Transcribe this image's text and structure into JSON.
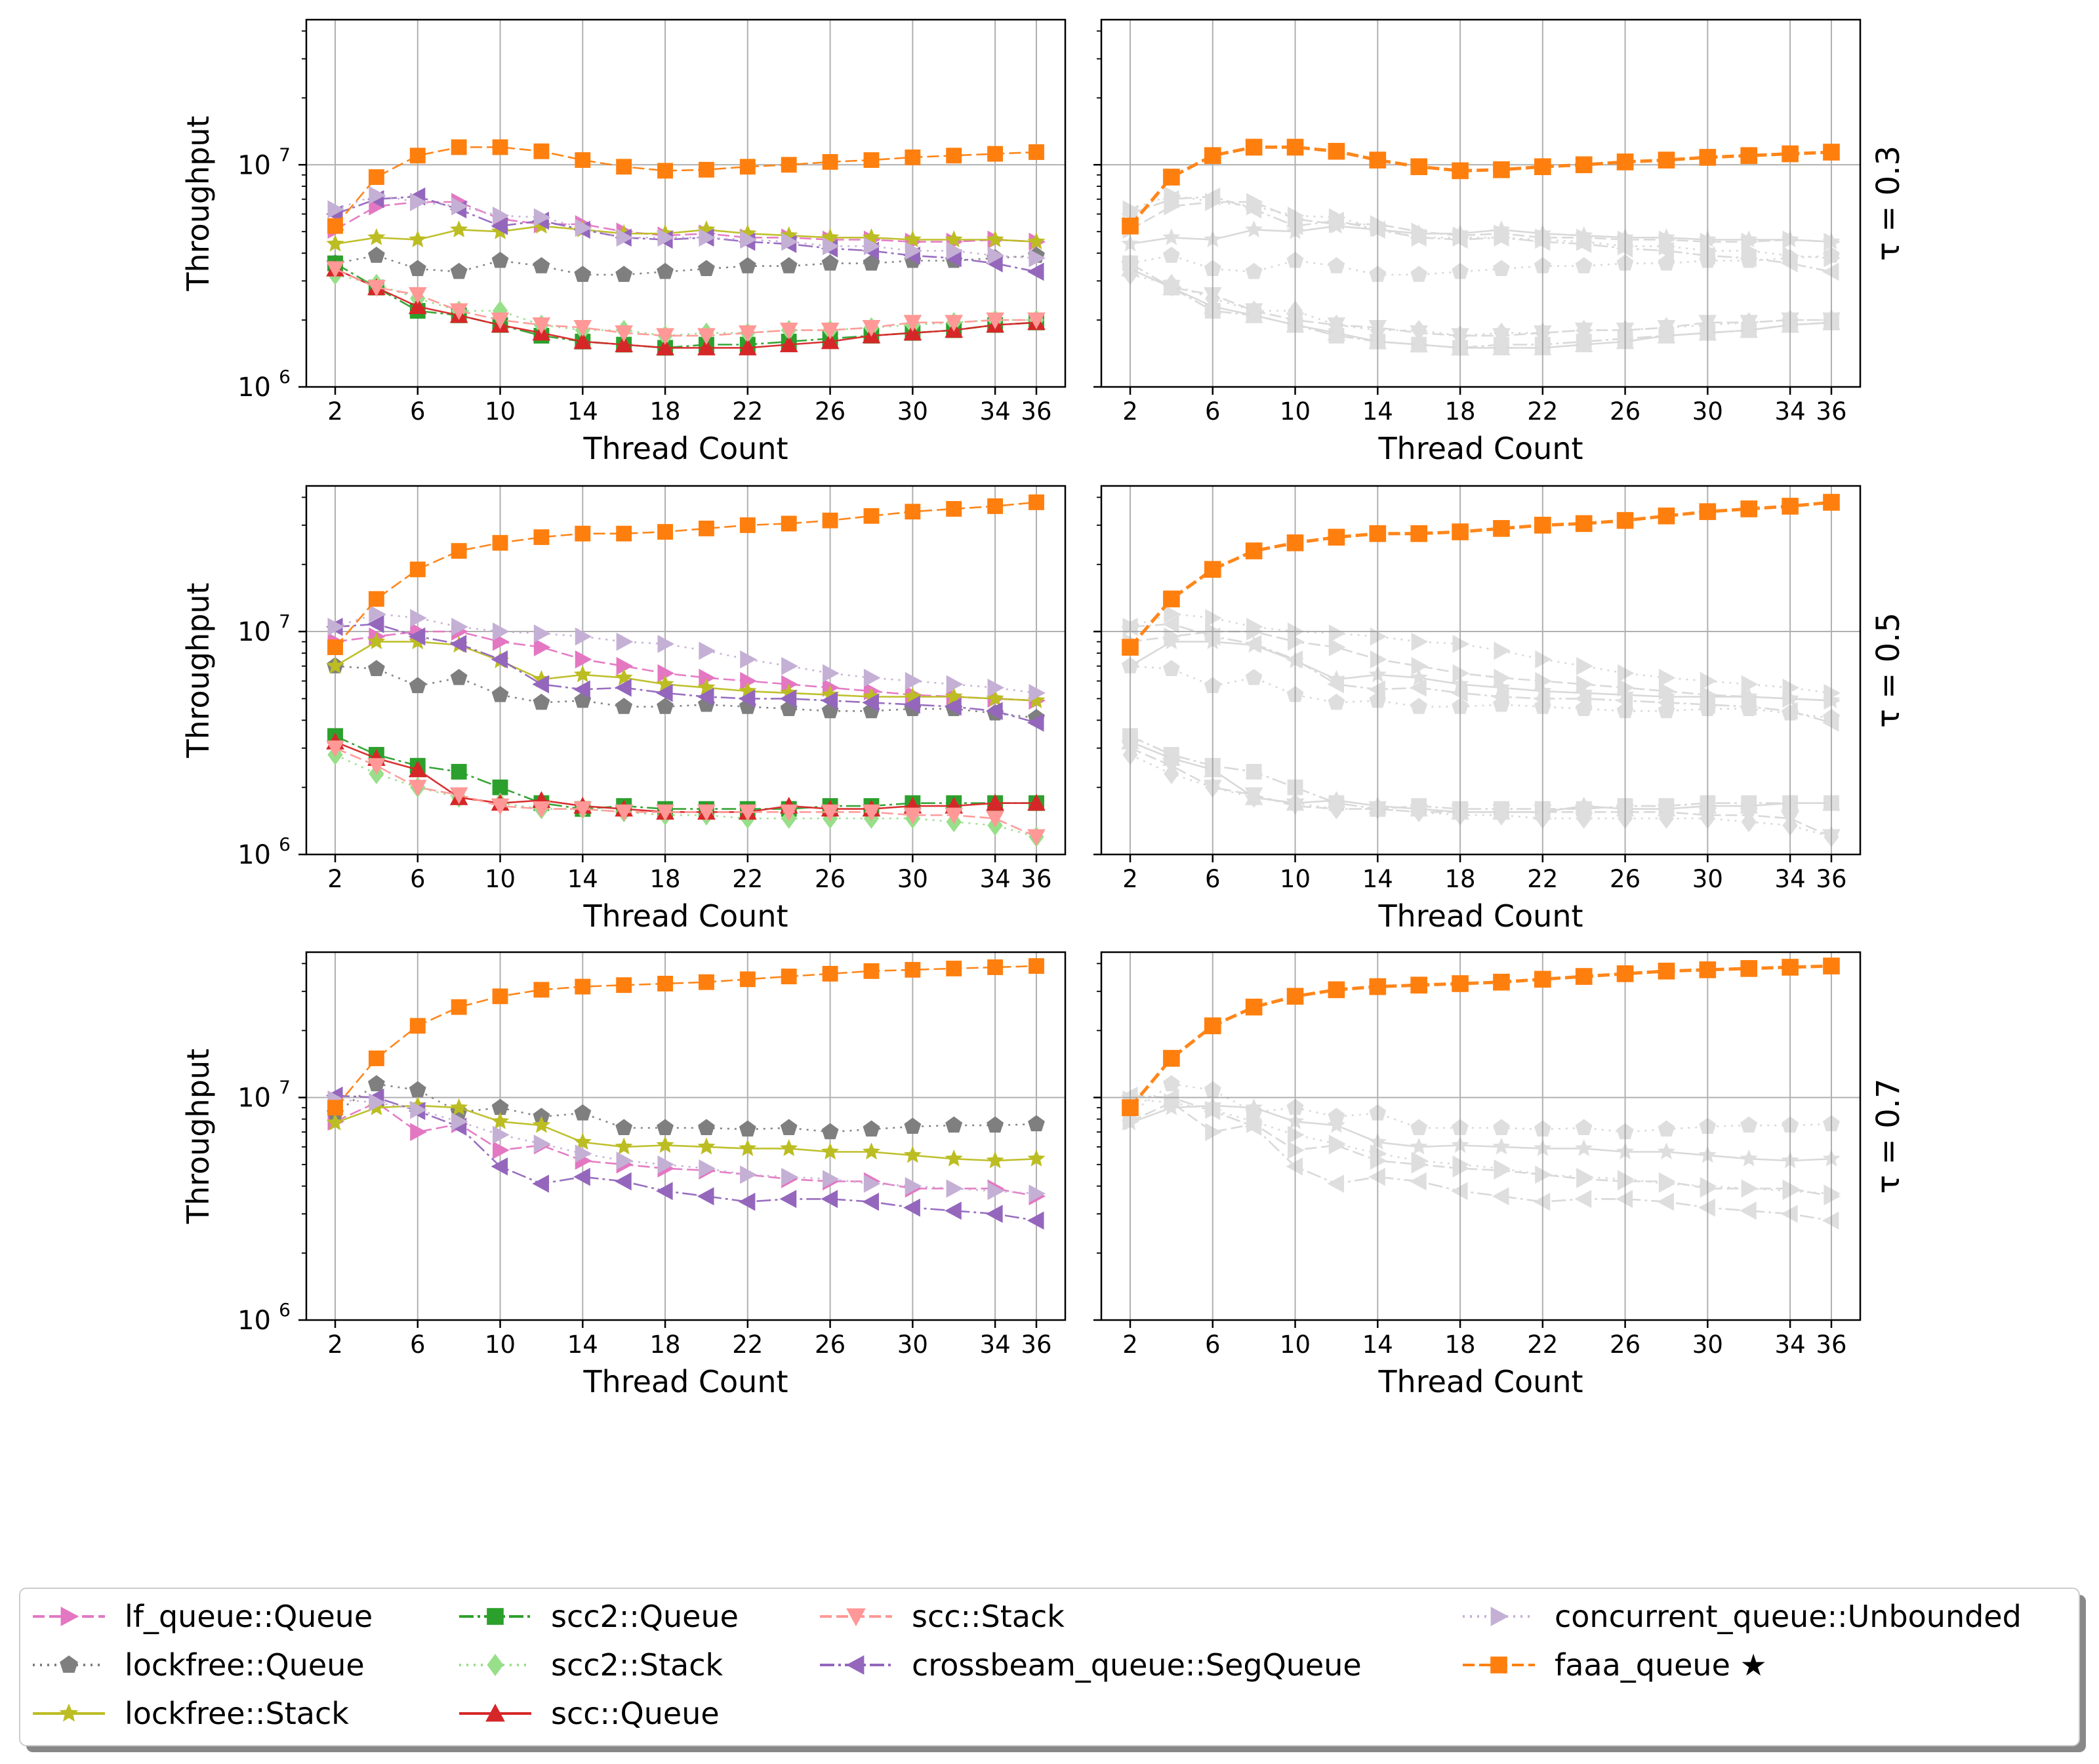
{
  "chart_data": {
    "type": "line",
    "layout": "3 rows x 2 columns of panels, shared log-scale y axis per row",
    "xlabel": "Thread Count",
    "ylabel": "Throughput",
    "yscale": "log",
    "ylim": [
      1000000,
      45000000
    ],
    "xlim": [
      0.6,
      37.4
    ],
    "x": [
      2,
      4,
      6,
      8,
      10,
      12,
      14,
      16,
      18,
      20,
      22,
      24,
      26,
      28,
      30,
      32,
      34,
      36
    ],
    "x_ticks": [
      "2",
      "6",
      "10",
      "14",
      "18",
      "22",
      "26",
      "30",
      "34",
      "36"
    ],
    "y_ticks": [
      {
        "base": "10",
        "exp": "6"
      },
      {
        "base": "10",
        "exp": "7"
      }
    ],
    "right_panel_note": "Right column shows the same baselines greyed out with faaa_queue highlighted",
    "series_styles": [
      {
        "name": "lf_queue::Queue",
        "color": "#e377c2",
        "marker": "triangle-right",
        "dash": "18 7"
      },
      {
        "name": "lockfree::Queue",
        "color": "#7f7f7f",
        "marker": "pentagon",
        "dash": "3 8"
      },
      {
        "name": "lockfree::Stack",
        "color": "#bcbd22",
        "marker": "star",
        "dash": ""
      },
      {
        "name": "scc2::Queue",
        "color": "#2ca02c",
        "marker": "square",
        "dash": "22 6 4 6"
      },
      {
        "name": "scc2::Stack",
        "color": "#98df8a",
        "marker": "diamond",
        "dash": "3 8"
      },
      {
        "name": "scc::Queue",
        "color": "#d62728",
        "marker": "triangle-up",
        "dash": ""
      },
      {
        "name": "scc::Stack",
        "color": "#ff9896",
        "marker": "triangle-down",
        "dash": "18 7"
      },
      {
        "name": "crossbeam_queue::SegQueue",
        "color": "#9467bd",
        "marker": "triangle-left",
        "dash": "22 6 4 6"
      },
      {
        "name": "concurrent_queue::Unbounded",
        "color": "#c5b0d5",
        "marker": "triangle-right",
        "dash": "3 8"
      },
      {
        "name": "faaa_queue ★",
        "color": "#ff7f0e",
        "marker": "square",
        "dash": "18 7"
      }
    ],
    "rows": [
      {
        "label": "τ = 0.3",
        "series": [
          {
            "name": "lf_queue::Queue",
            "values": [
              5100000,
              6500000,
              6800000,
              6800000,
              5700000,
              5400000,
              5400000,
              5000000,
              4800000,
              4900000,
              4700000,
              4700000,
              4600000,
              4600000,
              4500000,
              4500000,
              4600000,
              4500000
            ]
          },
          {
            "name": "lockfree::Queue",
            "values": [
              3600000,
              3900000,
              3400000,
              3300000,
              3700000,
              3500000,
              3200000,
              3200000,
              3300000,
              3400000,
              3500000,
              3500000,
              3600000,
              3600000,
              3700000,
              3700000,
              3800000,
              3900000
            ]
          },
          {
            "name": "lockfree::Stack",
            "values": [
              4400000,
              4700000,
              4600000,
              5100000,
              5000000,
              5300000,
              5100000,
              4900000,
              4900000,
              5100000,
              4900000,
              4800000,
              4700000,
              4700000,
              4600000,
              4600000,
              4600000,
              4500000
            ]
          },
          {
            "name": "scc2::Queue",
            "values": [
              3600000,
              2800000,
              2200000,
              2100000,
              1900000,
              1700000,
              1600000,
              1550000,
              1500000,
              1550000,
              1550000,
              1600000,
              1650000,
              1700000,
              1750000,
              1800000,
              1900000,
              1950000
            ]
          },
          {
            "name": "scc2::Stack",
            "values": [
              3200000,
              2900000,
              2500000,
              2200000,
              2200000,
              1900000,
              1800000,
              1800000,
              1700000,
              1750000,
              1750000,
              1800000,
              1800000,
              1850000,
              1900000,
              1950000,
              2000000,
              2000000
            ]
          },
          {
            "name": "scc::Queue",
            "values": [
              3400000,
              2800000,
              2300000,
              2100000,
              1900000,
              1750000,
              1600000,
              1550000,
              1500000,
              1500000,
              1500000,
              1550000,
              1600000,
              1700000,
              1750000,
              1800000,
              1900000,
              1950000
            ]
          },
          {
            "name": "scc::Stack",
            "values": [
              3400000,
              2800000,
              2600000,
              2200000,
              2000000,
              1900000,
              1850000,
              1750000,
              1700000,
              1700000,
              1750000,
              1800000,
              1800000,
              1850000,
              1950000,
              1950000,
              2000000,
              2000000
            ]
          },
          {
            "name": "crossbeam_queue::SegQueue",
            "values": [
              6000000,
              7000000,
              7200000,
              6300000,
              5300000,
              5600000,
              5100000,
              4700000,
              4600000,
              4700000,
              4500000,
              4400000,
              4200000,
              4100000,
              3900000,
              3800000,
              3600000,
              3300000
            ]
          },
          {
            "name": "concurrent_queue::Unbounded",
            "values": [
              6300000,
              7300000,
              6800000,
              6500000,
              5900000,
              5800000,
              5200000,
              4700000,
              4700000,
              4700000,
              4600000,
              4500000,
              4300000,
              4300000,
              4100000,
              4100000,
              3900000,
              3800000
            ]
          },
          {
            "name": "faaa_queue ★",
            "values": [
              5300000,
              8800000,
              11000000,
              12000000,
              12000000,
              11500000,
              10500000,
              9800000,
              9400000,
              9500000,
              9800000,
              10000000,
              10300000,
              10500000,
              10800000,
              11000000,
              11200000,
              11400000
            ]
          }
        ]
      },
      {
        "label": "τ = 0.5",
        "series": [
          {
            "name": "lf_queue::Queue",
            "values": [
              9000000,
              9500000,
              10000000,
              10000000,
              9000000,
              8500000,
              7500000,
              7000000,
              6500000,
              6200000,
              6000000,
              5800000,
              5600000,
              5400000,
              5200000,
              5100000,
              5000000,
              4900000
            ]
          },
          {
            "name": "lockfree::Queue",
            "values": [
              7000000,
              6800000,
              5700000,
              6200000,
              5200000,
              4800000,
              4900000,
              4600000,
              4600000,
              4700000,
              4600000,
              4500000,
              4400000,
              4400000,
              4500000,
              4500000,
              4300000,
              4100000
            ]
          },
          {
            "name": "lockfree::Stack",
            "values": [
              7000000,
              9000000,
              9000000,
              8700000,
              7400000,
              6100000,
              6400000,
              6200000,
              5800000,
              5600000,
              5400000,
              5300000,
              5200000,
              5100000,
              5100000,
              5100000,
              5000000,
              4900000
            ]
          },
          {
            "name": "scc2::Queue",
            "values": [
              3400000,
              2800000,
              2500000,
              2350000,
              2000000,
              1700000,
              1600000,
              1650000,
              1600000,
              1600000,
              1600000,
              1600000,
              1650000,
              1650000,
              1700000,
              1700000,
              1700000,
              1700000
            ]
          },
          {
            "name": "scc2::Stack",
            "values": [
              2800000,
              2300000,
              2000000,
              1800000,
              1700000,
              1600000,
              1600000,
              1550000,
              1500000,
              1500000,
              1450000,
              1450000,
              1450000,
              1450000,
              1450000,
              1400000,
              1350000,
              1200000
            ]
          },
          {
            "name": "scc::Queue",
            "values": [
              3200000,
              2700000,
              2400000,
              1800000,
              1700000,
              1750000,
              1650000,
              1600000,
              1550000,
              1550000,
              1550000,
              1650000,
              1600000,
              1600000,
              1650000,
              1650000,
              1700000,
              1700000
            ]
          },
          {
            "name": "scc::Stack",
            "values": [
              3000000,
              2500000,
              2000000,
              1850000,
              1650000,
              1600000,
              1600000,
              1550000,
              1550000,
              1550000,
              1550000,
              1550000,
              1550000,
              1550000,
              1500000,
              1500000,
              1450000,
              1200000
            ]
          },
          {
            "name": "crossbeam_queue::SegQueue",
            "values": [
              10500000,
              10800000,
              9500000,
              8800000,
              7500000,
              5800000,
              5500000,
              5600000,
              5300000,
              5100000,
              5000000,
              5000000,
              4900000,
              4800000,
              4700000,
              4600000,
              4400000,
              3900000
            ]
          },
          {
            "name": "concurrent_queue::Unbounded",
            "values": [
              10500000,
              12000000,
              11500000,
              10500000,
              10000000,
              9800000,
              9500000,
              9000000,
              8800000,
              8200000,
              7500000,
              7000000,
              6500000,
              6200000,
              6000000,
              5800000,
              5600000,
              5300000
            ]
          },
          {
            "name": "faaa_queue ★",
            "values": [
              8500000,
              14000000,
              19000000,
              23000000,
              25000000,
              26500000,
              27500000,
              27500000,
              28000000,
              29000000,
              30000000,
              30500000,
              31500000,
              33000000,
              34500000,
              35500000,
              36500000,
              38000000
            ]
          }
        ]
      },
      {
        "label": "τ = 0.7",
        "series": [
          {
            "name": "lf_queue::Queue",
            "values": [
              7800000,
              9500000,
              7000000,
              7600000,
              5800000,
              6100000,
              5200000,
              5000000,
              4800000,
              4700000,
              4500000,
              4300000,
              4200000,
              4200000,
              3900000,
              3900000,
              3900000,
              3600000
            ]
          },
          {
            "name": "lockfree::Queue",
            "values": [
              8500000,
              11500000,
              10800000,
              8600000,
              9000000,
              8200000,
              8500000,
              7300000,
              7300000,
              7300000,
              7200000,
              7300000,
              7000000,
              7200000,
              7400000,
              7500000,
              7500000,
              7600000
            ]
          },
          {
            "name": "lockfree::Stack",
            "values": [
              7700000,
              9000000,
              9200000,
              9000000,
              7800000,
              7500000,
              6300000,
              6000000,
              6100000,
              6000000,
              5900000,
              5900000,
              5700000,
              5700000,
              5500000,
              5300000,
              5200000,
              5300000
            ]
          },
          {
            "name": "crossbeam_queue::SegQueue",
            "values": [
              10200000,
              10000000,
              8700000,
              7400000,
              4900000,
              4100000,
              4400000,
              4200000,
              3800000,
              3600000,
              3400000,
              3500000,
              3500000,
              3400000,
              3200000,
              3100000,
              3000000,
              2800000
            ]
          },
          {
            "name": "concurrent_queue::Unbounded",
            "values": [
              9800000,
              9500000,
              8800000,
              7800000,
              6800000,
              6200000,
              5600000,
              5200000,
              5000000,
              4800000,
              4500000,
              4400000,
              4300000,
              4100000,
              4000000,
              3900000,
              3800000,
              3700000
            ]
          },
          {
            "name": "faaa_queue ★",
            "values": [
              9000000,
              15000000,
              21000000,
              25500000,
              28500000,
              30500000,
              31500000,
              32000000,
              32500000,
              33000000,
              34000000,
              35000000,
              36000000,
              37000000,
              37500000,
              38000000,
              38500000,
              39000000
            ]
          }
        ]
      }
    ],
    "legend": {
      "placement": "bottom",
      "columns": [
        [
          "lf_queue::Queue",
          "lockfree::Queue",
          "lockfree::Stack"
        ],
        [
          "scc2::Queue",
          "scc2::Stack",
          "scc::Queue"
        ],
        [
          "scc::Stack",
          "crossbeam_queue::SegQueue"
        ],
        [
          "concurrent_queue::Unbounded",
          "faaa_queue ★"
        ]
      ]
    }
  }
}
